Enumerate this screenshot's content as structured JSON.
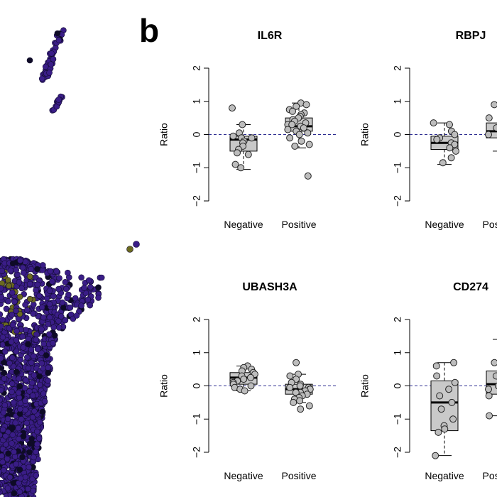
{
  "panel_label": "b",
  "colors": {
    "scatter_main": "#3a1d87",
    "scatter_dark": "#0e0b26",
    "scatter_yellow": "#6b6a1f",
    "box_fill": "#c9c9c9",
    "point_fill": "#bdbdbd",
    "ref_line": "#2b2b8f"
  },
  "chart_data": [
    {
      "type": "box",
      "title": "IL6R",
      "xlabel": "",
      "ylabel": "Ratio",
      "ylim": [
        -2,
        2
      ],
      "yticks": [
        -2,
        -1,
        0,
        1,
        2
      ],
      "reference_line": 0,
      "categories": [
        "Negative",
        "Positive"
      ],
      "groups": [
        {
          "name": "Negative",
          "box": {
            "q1": -0.5,
            "median": -0.15,
            "q3": -0.05,
            "whisker_low": -1.05,
            "whisker_high": 0.3
          },
          "points": [
            0.8,
            0.3,
            0.05,
            -0.05,
            -0.1,
            -0.1,
            -0.2,
            -0.25,
            -0.35,
            -0.45,
            -0.55,
            -0.6,
            -0.9,
            -1.0
          ]
        },
        {
          "name": "Positive",
          "box": {
            "q1": 0.1,
            "median": 0.25,
            "q3": 0.5,
            "whisker_low": -0.4,
            "whisker_high": 0.95
          },
          "points": [
            0.95,
            0.9,
            0.85,
            0.75,
            0.7,
            0.65,
            0.6,
            0.55,
            0.5,
            0.45,
            0.4,
            0.35,
            0.3,
            0.3,
            0.25,
            0.2,
            0.15,
            0.1,
            0.05,
            0.0,
            -0.1,
            -0.2,
            -0.3,
            -0.35,
            -1.25
          ]
        }
      ]
    },
    {
      "type": "box",
      "title": "RBPJ",
      "xlabel": "",
      "ylabel": "Ratio",
      "ylim": [
        -2,
        2
      ],
      "yticks": [
        -2,
        -1,
        0,
        1,
        2
      ],
      "reference_line": 0,
      "categories": [
        "Negative",
        "Positive"
      ],
      "groups": [
        {
          "name": "Negative",
          "box": {
            "q1": -0.45,
            "median": -0.25,
            "q3": -0.05,
            "whisker_low": -0.9,
            "whisker_high": 0.35
          },
          "points": [
            0.35,
            0.3,
            0.1,
            0.0,
            -0.1,
            -0.15,
            -0.25,
            -0.3,
            -0.4,
            -0.5,
            -0.7,
            -0.85
          ]
        },
        {
          "name": "Positive",
          "box": {
            "q1": -0.1,
            "median": 0.1,
            "q3": 0.35,
            "whisker_low": -0.5,
            "whisker_high": 0.9
          },
          "points": [
            0.9,
            0.7,
            0.5,
            0.4,
            0.3,
            0.2,
            0.1,
            0.0,
            -0.1,
            -0.3,
            -1.0
          ]
        }
      ]
    },
    {
      "type": "box",
      "title": "UBASH3A",
      "xlabel": "",
      "ylabel": "Ratio",
      "ylim": [
        -2,
        2
      ],
      "yticks": [
        -2,
        -1,
        0,
        1,
        2
      ],
      "reference_line": 0,
      "categories": [
        "Negative",
        "Positive"
      ],
      "groups": [
        {
          "name": "Negative",
          "box": {
            "q1": 0.05,
            "median": 0.25,
            "q3": 0.4,
            "whisker_low": -0.15,
            "whisker_high": 0.6
          },
          "points": [
            0.6,
            0.55,
            0.5,
            0.45,
            0.4,
            0.35,
            0.3,
            0.25,
            0.2,
            0.15,
            0.1,
            0.05,
            0.0,
            -0.05,
            -0.1,
            -0.15
          ]
        },
        {
          "name": "Positive",
          "box": {
            "q1": -0.25,
            "median": -0.1,
            "q3": 0.05,
            "whisker_low": -0.5,
            "whisker_high": 0.35
          },
          "points": [
            0.7,
            0.35,
            0.3,
            0.2,
            0.1,
            0.05,
            0.0,
            -0.05,
            -0.05,
            -0.1,
            -0.1,
            -0.15,
            -0.2,
            -0.2,
            -0.25,
            -0.3,
            -0.35,
            -0.4,
            -0.45,
            -0.5,
            -0.6,
            -0.7
          ]
        }
      ]
    },
    {
      "type": "box",
      "title": "CD274",
      "xlabel": "",
      "ylabel": "Ratio",
      "ylim": [
        -2,
        2
      ],
      "yticks": [
        -2,
        -1,
        0,
        1,
        2
      ],
      "reference_line": 0,
      "categories": [
        "Negative",
        "Positive"
      ],
      "groups": [
        {
          "name": "Negative",
          "box": {
            "q1": -1.35,
            "median": -0.5,
            "q3": 0.15,
            "whisker_low": -2.1,
            "whisker_high": 0.7
          },
          "points": [
            0.7,
            0.6,
            0.3,
            0.1,
            -0.1,
            -0.3,
            -0.5,
            -0.7,
            -1.0,
            -1.2,
            -1.3,
            -1.4,
            -2.1
          ]
        },
        {
          "name": "Positive",
          "box": {
            "q1": -0.25,
            "median": 0.05,
            "q3": 0.45,
            "whisker_low": -0.9,
            "whisker_high": 1.4
          },
          "points": [
            1.5,
            1.4,
            0.7,
            0.5,
            0.3,
            0.1,
            0.0,
            -0.1,
            -0.3,
            -0.9
          ]
        }
      ]
    }
  ]
}
